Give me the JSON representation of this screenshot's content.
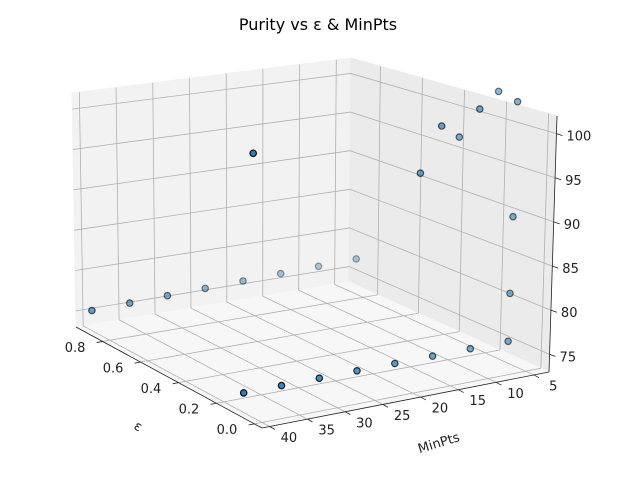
{
  "chart_data": {
    "type": "scatter",
    "title": "Purity vs ε & MinPts",
    "xlabel": "MinPts",
    "ylabel": "ε",
    "zlabel": "",
    "x_ticks": [
      "5",
      "10",
      "15",
      "20",
      "25",
      "30",
      "35",
      "40"
    ],
    "y_ticks": [
      "0.0",
      "0.2",
      "0.4",
      "0.6",
      "0.8"
    ],
    "z_ticks": [
      "75",
      "80",
      "85",
      "90",
      "95",
      "100"
    ],
    "xlim": [
      3,
      41
    ],
    "ylim": [
      -0.04,
      0.94
    ],
    "zlim": [
      73,
      102
    ],
    "marker_color": "#1f77b4",
    "edge_color": "#000000",
    "grid": true,
    "points": [
      {
        "minpts": 5,
        "eps": 0.9,
        "purity": 75
      },
      {
        "minpts": 5,
        "eps": 0.1,
        "purity": 75
      },
      {
        "minpts": 5,
        "eps": 0.1,
        "purity": 80
      },
      {
        "minpts": 5,
        "eps": 0.1,
        "purity": 88
      },
      {
        "minpts": 5,
        "eps": 0.1,
        "purity": 100
      },
      {
        "minpts": 5,
        "eps": 0.2,
        "purity": 100
      },
      {
        "minpts": 10,
        "eps": 0.9,
        "purity": 75
      },
      {
        "minpts": 10,
        "eps": 0.1,
        "purity": 75
      },
      {
        "minpts": 10,
        "eps": 0.1,
        "purity": 100
      },
      {
        "minpts": 10,
        "eps": 0.2,
        "purity": 96
      },
      {
        "minpts": 15,
        "eps": 0.9,
        "purity": 75
      },
      {
        "minpts": 15,
        "eps": 0.1,
        "purity": 75
      },
      {
        "minpts": 15,
        "eps": 0.1,
        "purity": 99
      },
      {
        "minpts": 15,
        "eps": 0.2,
        "purity": 93
      },
      {
        "minpts": 20,
        "eps": 0.9,
        "purity": 75
      },
      {
        "minpts": 20,
        "eps": 0.1,
        "purity": 75
      },
      {
        "minpts": 25,
        "eps": 0.9,
        "purity": 75
      },
      {
        "minpts": 25,
        "eps": 0.1,
        "purity": 75
      },
      {
        "minpts": 30,
        "eps": 0.9,
        "purity": 75
      },
      {
        "minpts": 30,
        "eps": 0.1,
        "purity": 75
      },
      {
        "minpts": 35,
        "eps": 0.9,
        "purity": 75
      },
      {
        "minpts": 35,
        "eps": 0.1,
        "purity": 75
      },
      {
        "minpts": 40,
        "eps": 0.9,
        "purity": 75
      },
      {
        "minpts": 40,
        "eps": 0.1,
        "purity": 75
      },
      {
        "minpts": 40,
        "eps": 0.1,
        "purity": 100
      }
    ]
  }
}
